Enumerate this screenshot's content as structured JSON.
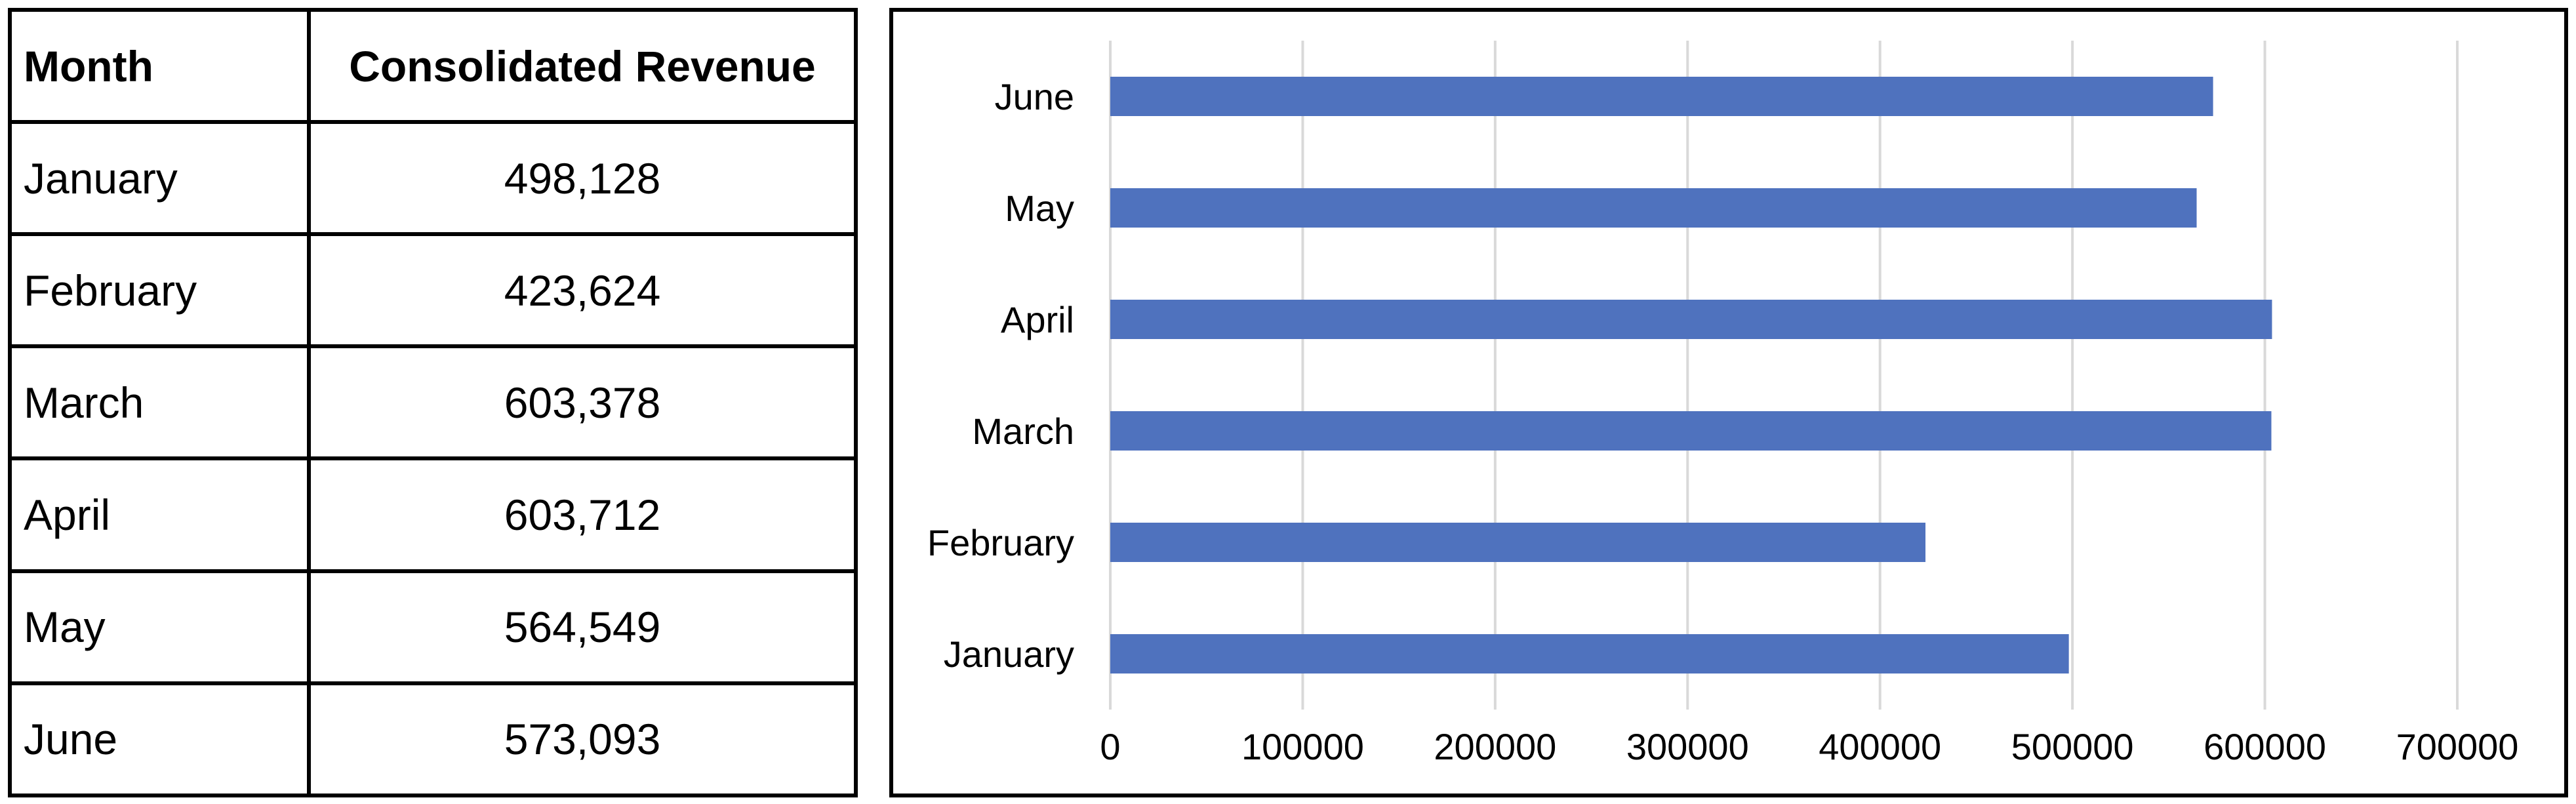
{
  "table": {
    "headers": [
      "Month",
      "Consolidated Revenue"
    ],
    "rows": [
      [
        "January",
        "498,128"
      ],
      [
        "February",
        "423,624"
      ],
      [
        "March",
        "603,378"
      ],
      [
        "April",
        "603,712"
      ],
      [
        "May",
        "564,549"
      ],
      [
        "June",
        "573,093"
      ]
    ]
  },
  "chart_data": {
    "type": "bar",
    "orientation": "horizontal",
    "categories": [
      "January",
      "February",
      "March",
      "April",
      "May",
      "June"
    ],
    "values": [
      498128,
      423624,
      603378,
      603712,
      564549,
      573093
    ],
    "xlim": [
      0,
      700000
    ],
    "x_ticks": [
      "0",
      "100000",
      "200000",
      "300000",
      "400000",
      "500000",
      "600000",
      "700000"
    ],
    "title": "",
    "xlabel": "",
    "ylabel": "",
    "grid": "vertical",
    "legend": "none",
    "bar_color": "#4f72be",
    "grid_color": "#d9d9d9"
  }
}
